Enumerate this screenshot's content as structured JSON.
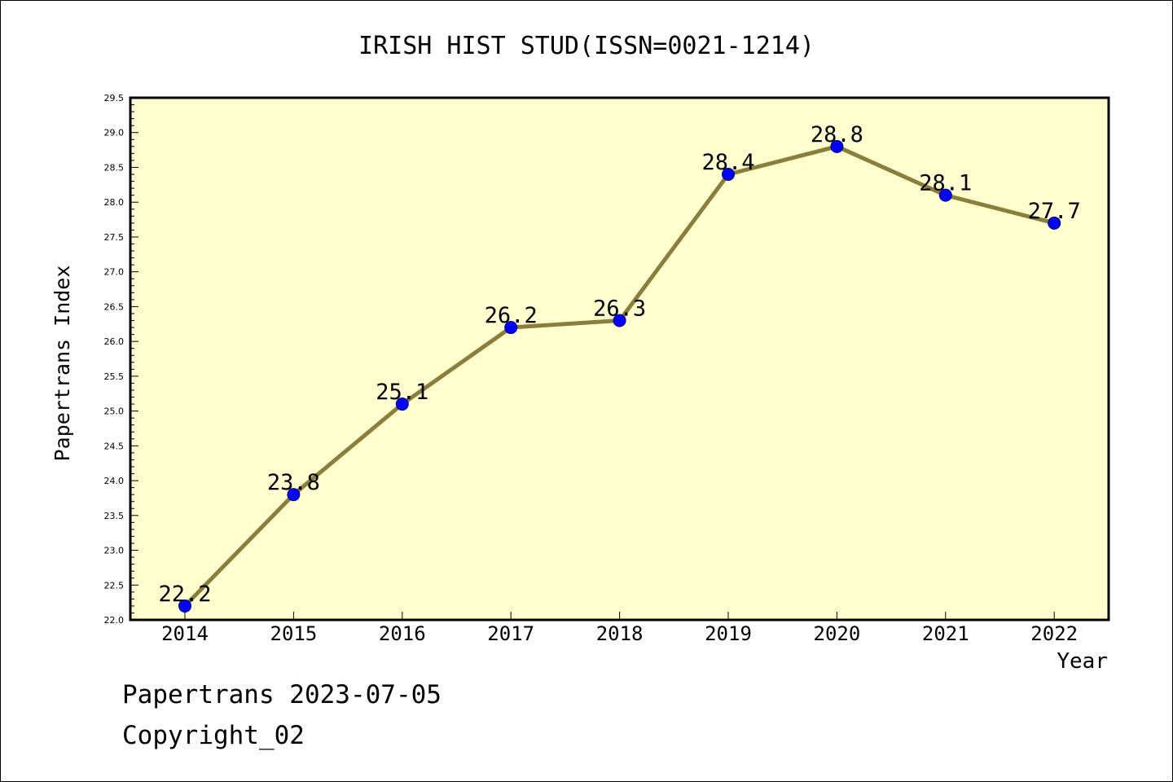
{
  "chart_data": {
    "type": "line",
    "title": "IRISH HIST STUD(ISSN=0021-1214)",
    "xlabel": "Year",
    "ylabel": "Papertrans Index",
    "categories": [
      "2014",
      "2015",
      "2016",
      "2017",
      "2018",
      "2019",
      "2020",
      "2021",
      "2022"
    ],
    "series": [
      {
        "values": [
          22.2,
          23.8,
          25.1,
          26.2,
          26.3,
          28.4,
          28.8,
          28.1,
          27.7
        ],
        "labels": [
          "22.2",
          "23.8",
          "25.1",
          "26.2",
          "26.3",
          "28.4",
          "28.8",
          "28.1",
          "27.7"
        ]
      }
    ],
    "ylim": [
      22.0,
      29.5
    ],
    "yticks": [
      "22.0",
      "22.5",
      "23.0",
      "23.5",
      "24.0",
      "24.5",
      "25.0",
      "25.5",
      "26.0",
      "26.5",
      "27.0",
      "27.5",
      "28.0",
      "28.5",
      "29.0",
      "29.5"
    ],
    "grid": false,
    "legend": "none",
    "colors": {
      "plot_background": "#ffffd0",
      "line": "#8b7d3a",
      "marker": "#0000ff",
      "marker_edge": "#000080",
      "axes": "#000000"
    }
  },
  "footer": {
    "line1": "Papertrans 2023-07-05",
    "line2": "Copyright_02"
  }
}
